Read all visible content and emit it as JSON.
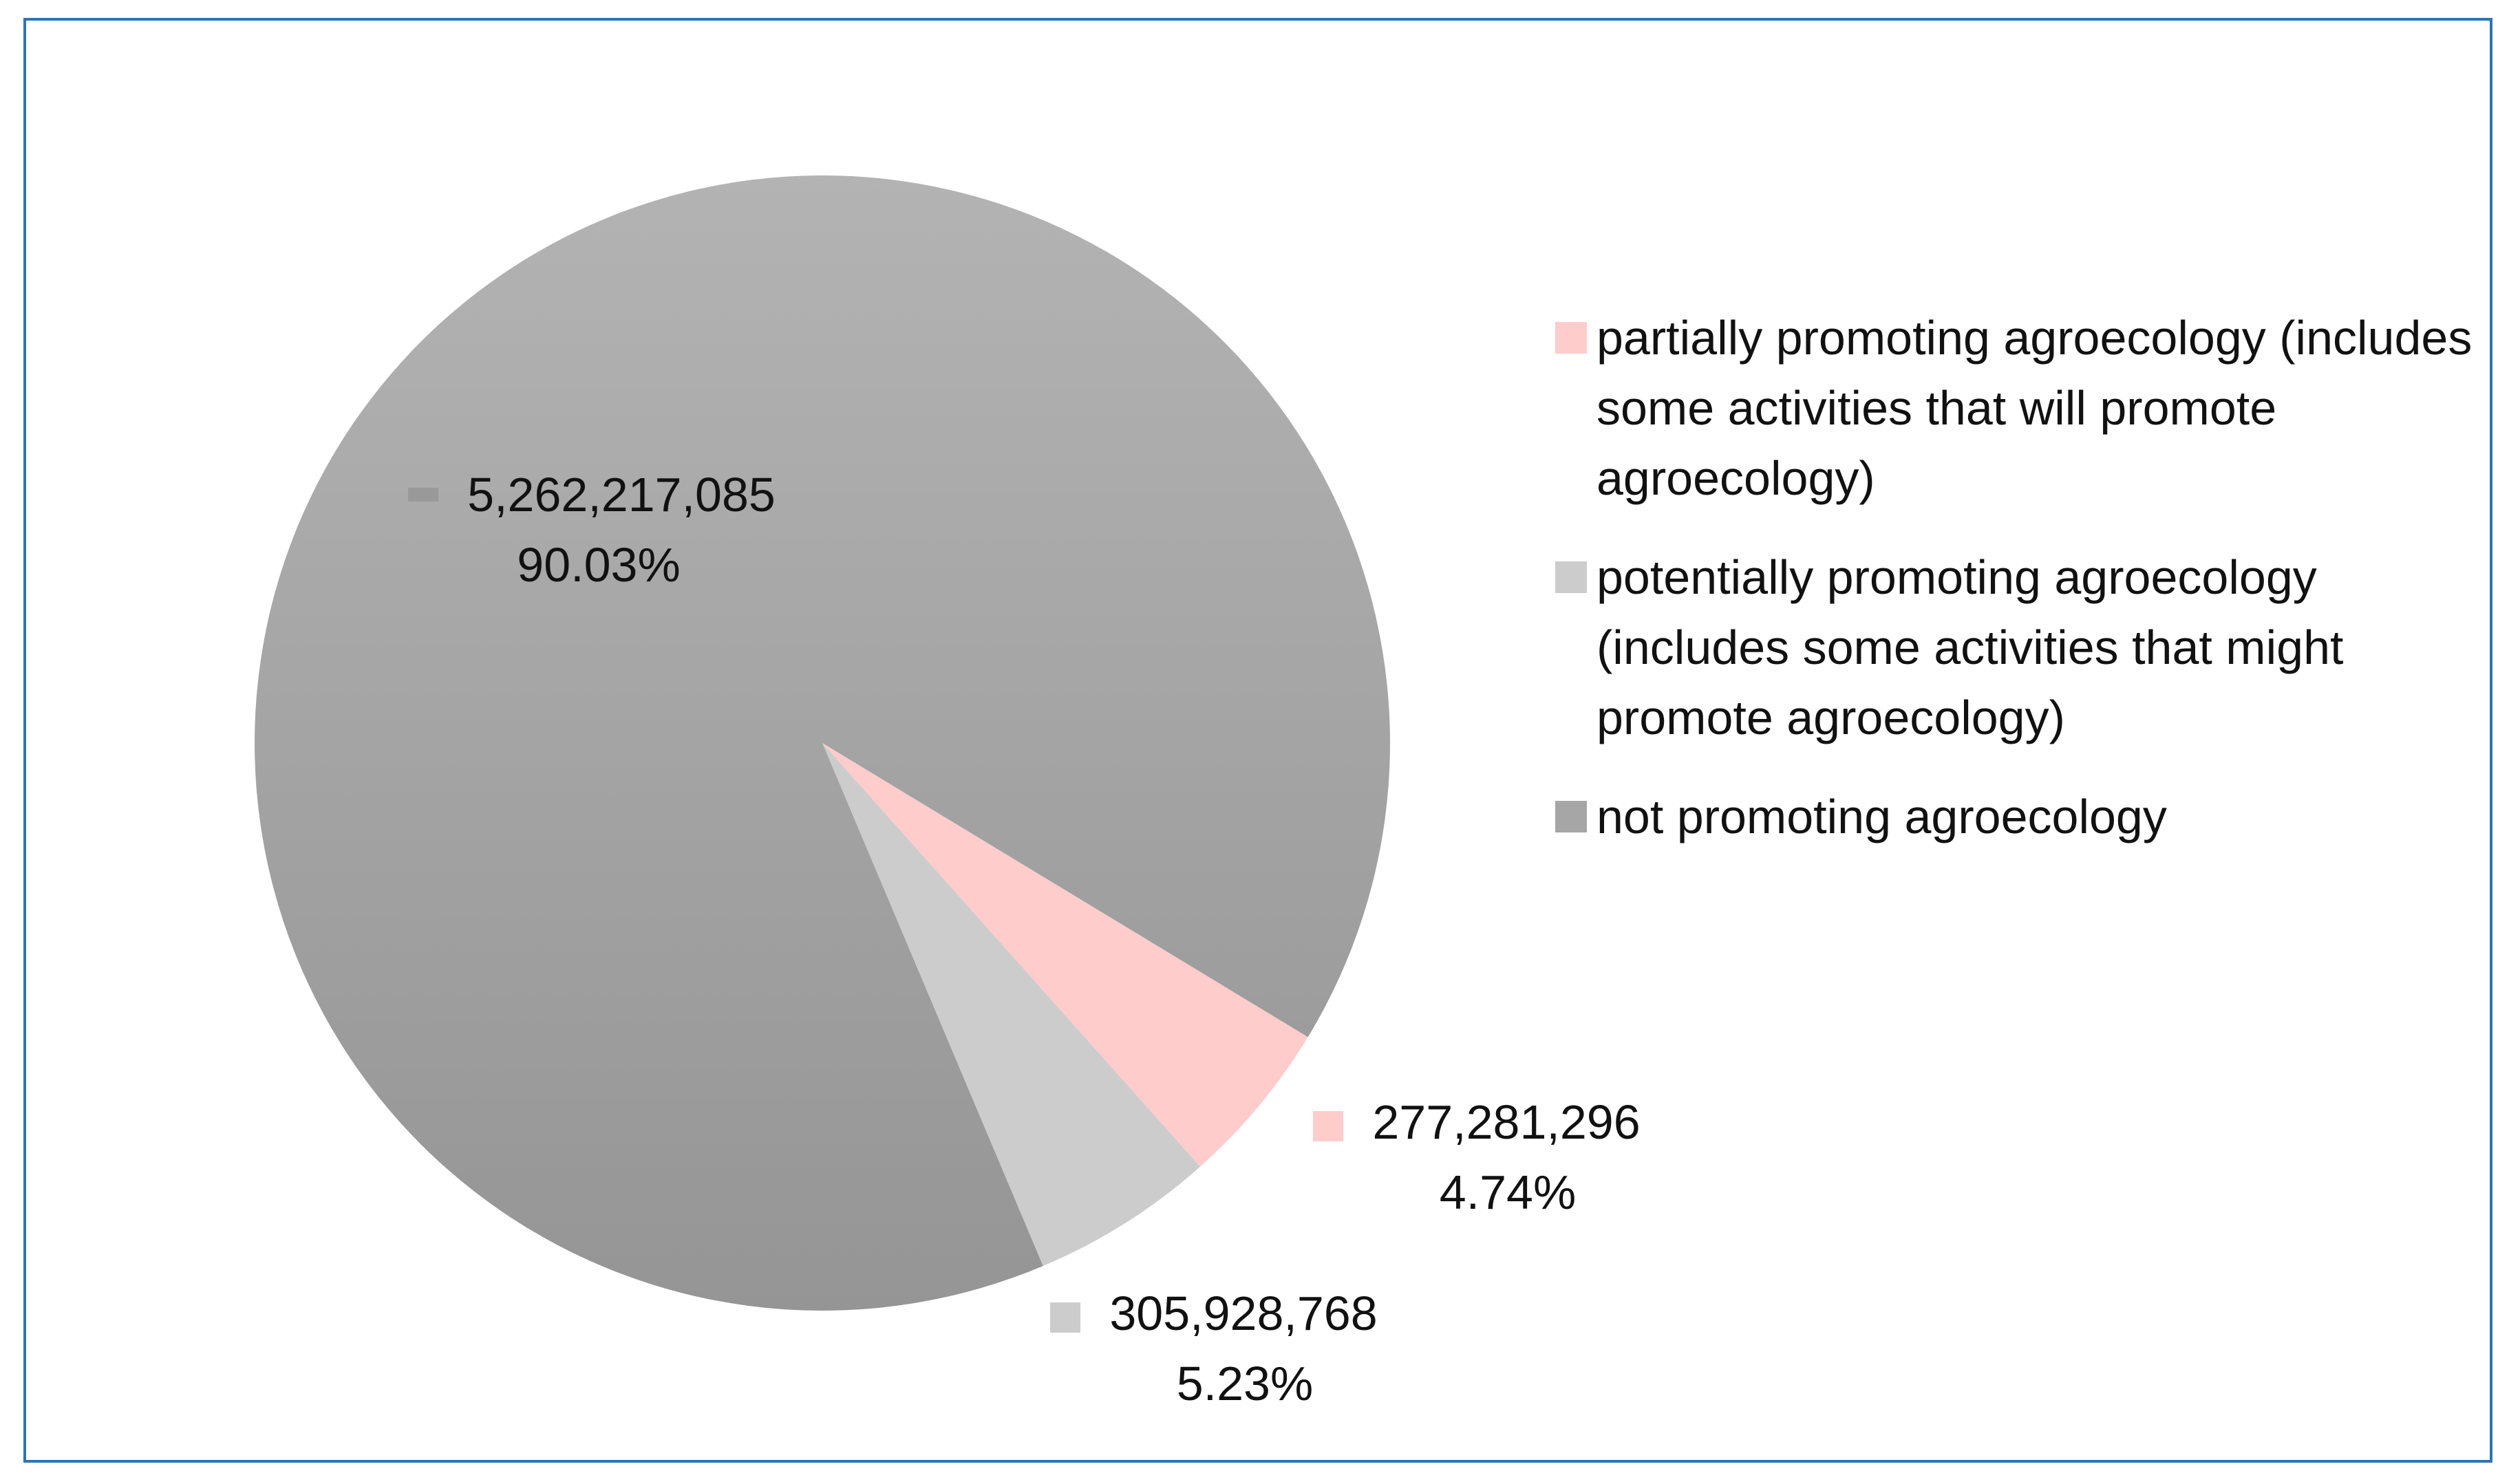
{
  "chart_data": {
    "type": "pie",
    "title": "",
    "slices": [
      {
        "name": "not promoting agroecology",
        "value": 5262217085,
        "value_label": "5,262,217,085",
        "percent_label": "90.03%",
        "color": "#a6a6a6"
      },
      {
        "name": "partially promoting agroecology (includes some activities that will promote agroecology)",
        "value": 277281296,
        "value_label": "277,281,296",
        "percent_label": "4.74%",
        "color": "#ffcccc"
      },
      {
        "name": "potentially promoting agroecology (includes some activities that might promote agroecology)",
        "value": 305928768,
        "value_label": "305,928,768",
        "percent_label": "5.23%",
        "color": "#cccccc"
      }
    ],
    "legend": {
      "placement": "right",
      "entries": [
        {
          "label": "partially promoting agroecology (includes some activities that will promote agroecology)",
          "color": "#ffcccc"
        },
        {
          "label": "potentially promoting agroecology (includes some activities that might promote agroecology)",
          "color": "#cccccc"
        },
        {
          "label": "not promoting agroecology",
          "color": "#a6a6a6"
        }
      ]
    }
  }
}
